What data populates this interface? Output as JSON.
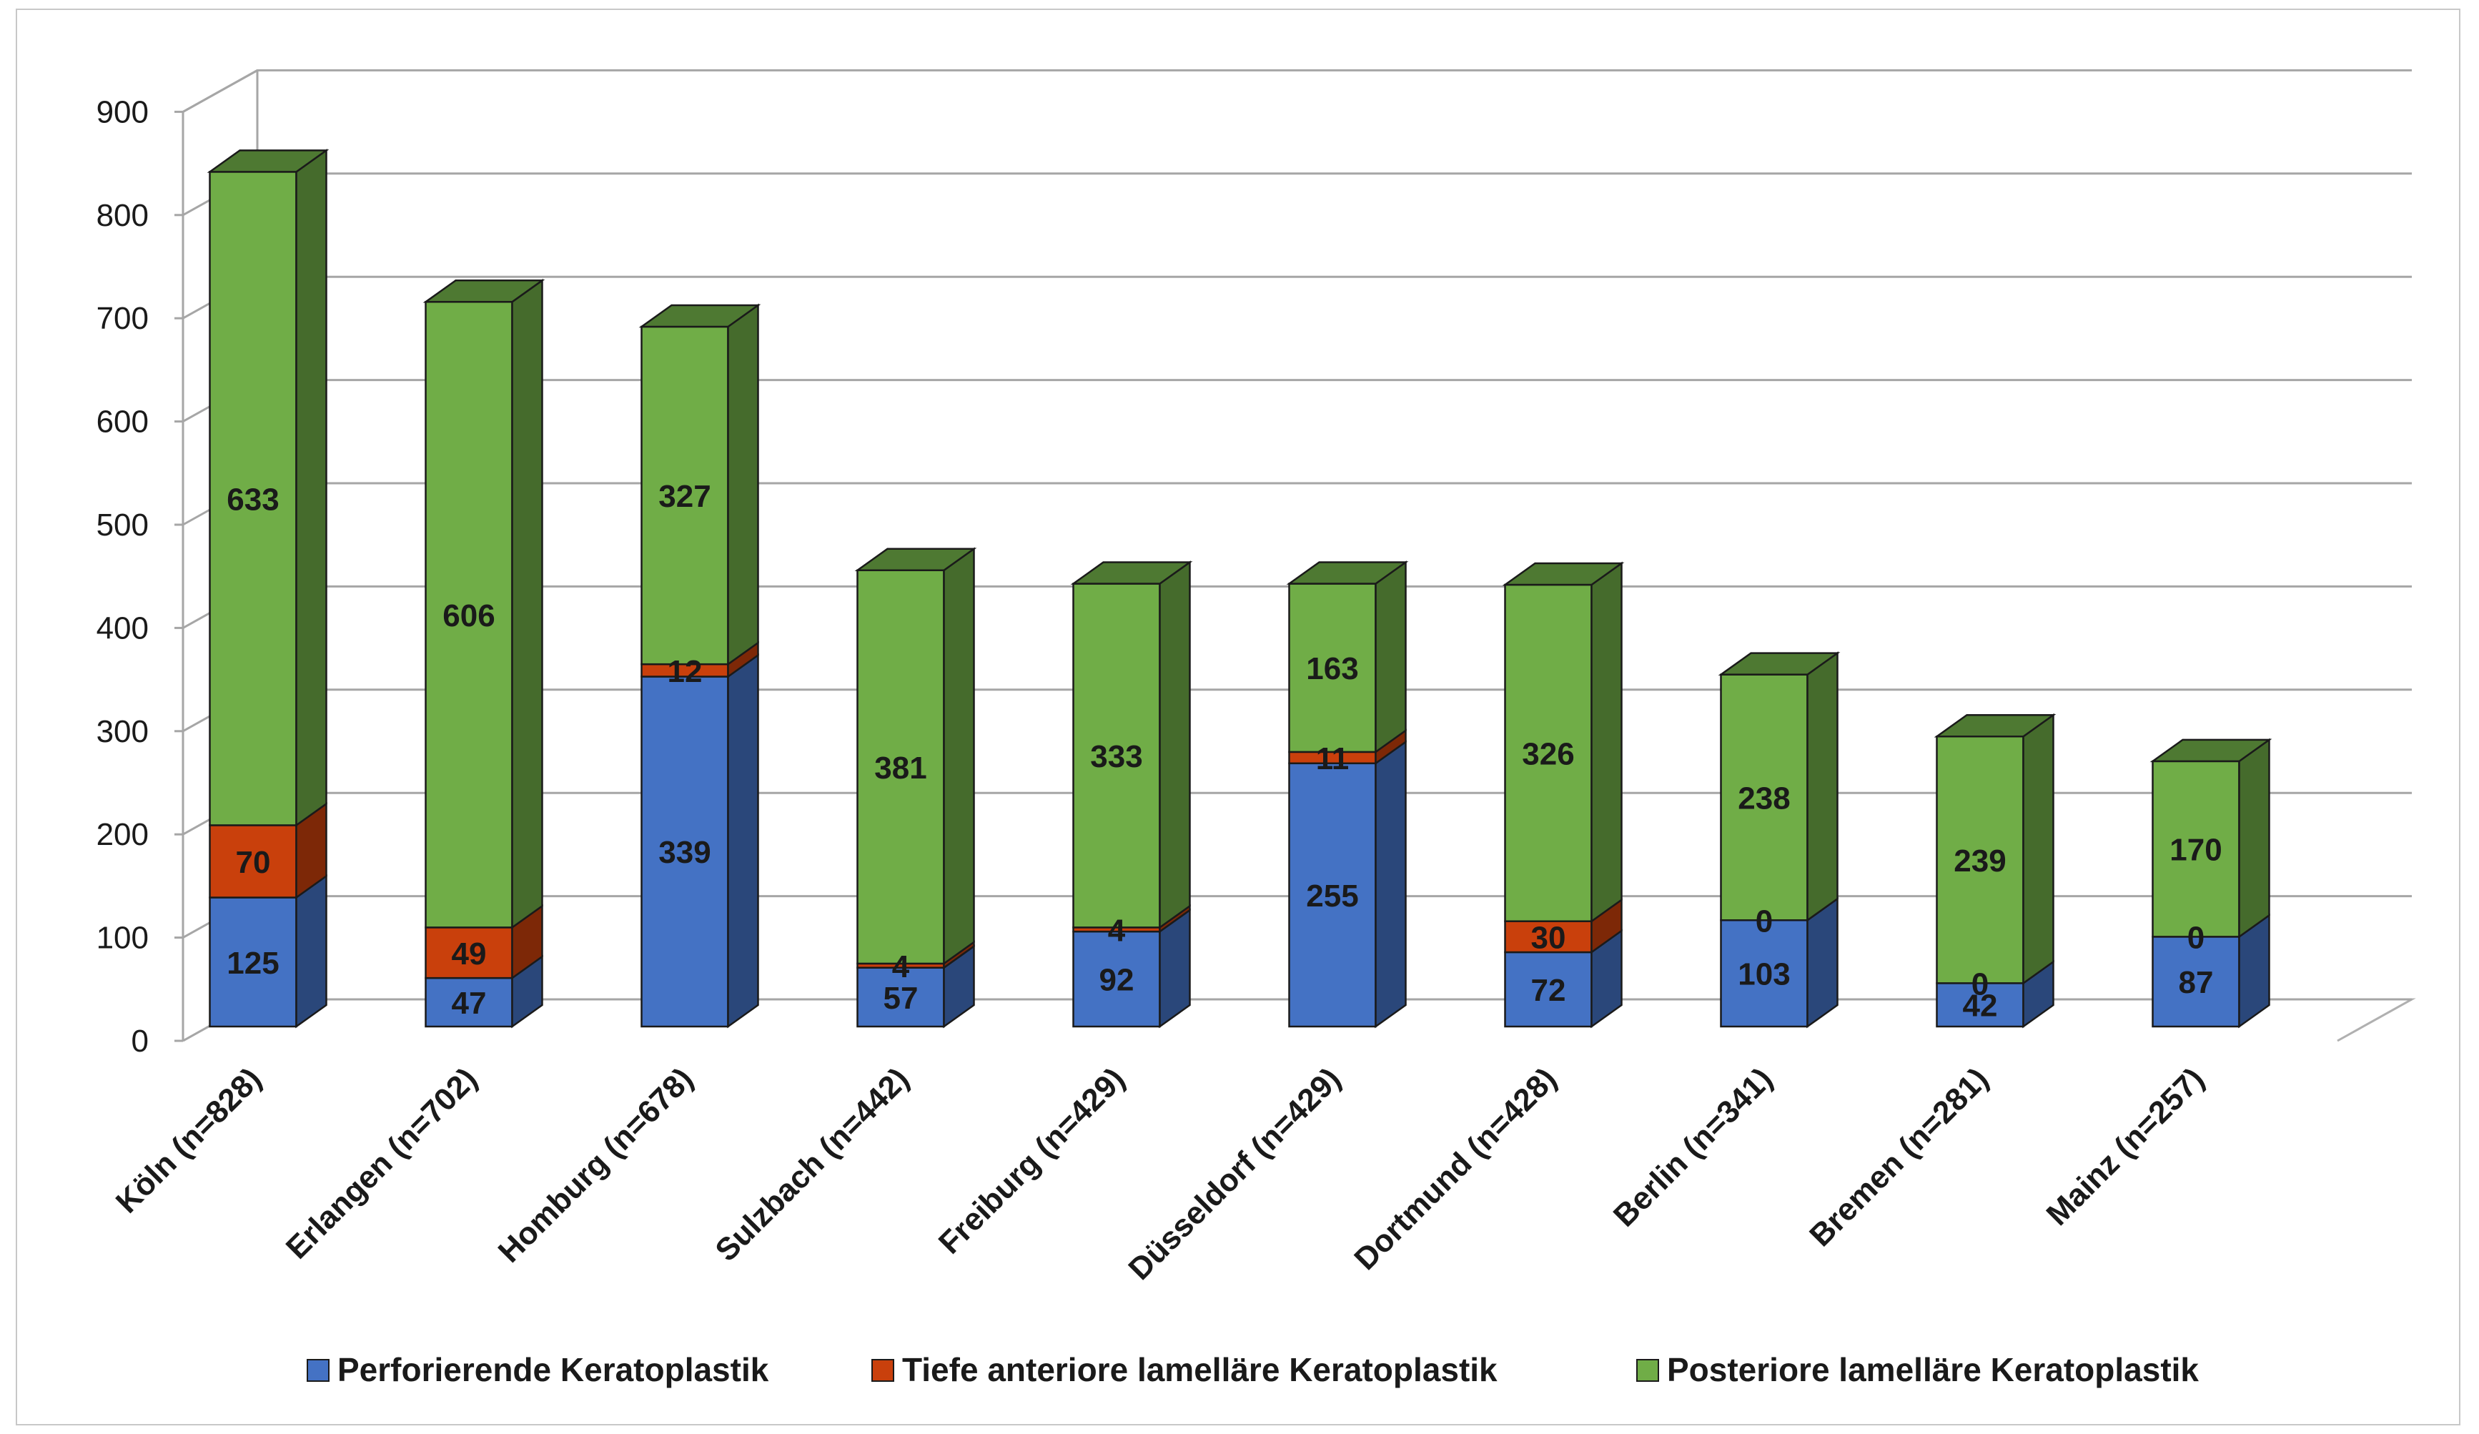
{
  "chart_data": {
    "type": "bar",
    "stacked": true,
    "three_d": true,
    "categories": [
      "Köln (n=828)",
      "Erlangen (n=702)",
      "Homburg (n=678)",
      "Sulzbach (n=442)",
      "Freiburg (n=429)",
      "Düsseldorf (n=429)",
      "Dortmund (n=428)",
      "Berlin (n=341)",
      "Bremen (n=281)",
      "Mainz (n=257)"
    ],
    "series": [
      {
        "name": "Perforierende Keratoplastik",
        "color": "#4472C4",
        "values": [
          125,
          47,
          339,
          57,
          92,
          255,
          72,
          103,
          42,
          87
        ]
      },
      {
        "name": "Tiefe anteriore lamelläre Keratoplastik",
        "color": "#C9400C",
        "values": [
          70,
          49,
          12,
          4,
          4,
          11,
          30,
          0,
          0,
          0
        ]
      },
      {
        "name": "Posteriore lamelläre Keratoplastik",
        "color": "#70AD47",
        "values": [
          633,
          606,
          327,
          381,
          333,
          163,
          326,
          238,
          239,
          170
        ]
      }
    ],
    "ylim": [
      0,
      900
    ],
    "yticks": [
      0,
      100,
      200,
      300,
      400,
      500,
      600,
      700,
      800,
      900
    ],
    "grid": true,
    "legend_position": "bottom",
    "title": "",
    "xlabel": "",
    "ylabel": ""
  }
}
